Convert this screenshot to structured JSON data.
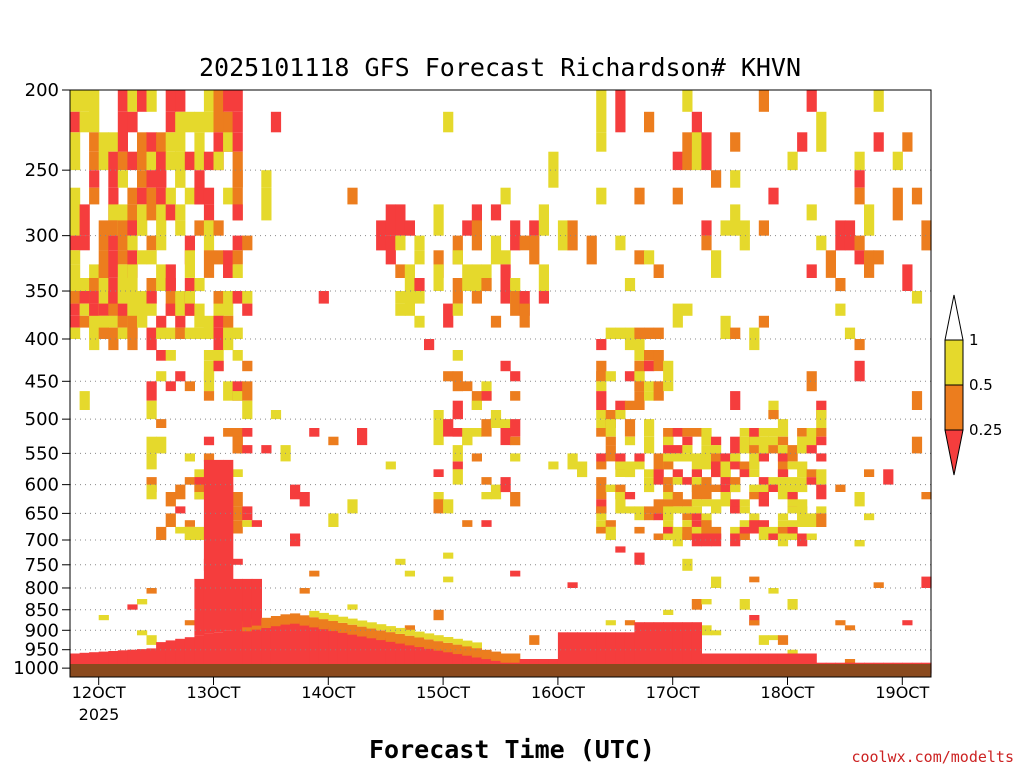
{
  "chart_data": {
    "type": "heatmap",
    "title": "2025101118 GFS Forecast Richardson# KHVN",
    "xlabel": "Forecast Time (UTC)",
    "ylabel": "",
    "credit": "coolwx.com/modelts",
    "x_ticks": [
      "12OCT",
      "13OCT",
      "14OCT",
      "15OCT",
      "16OCT",
      "17OCT",
      "18OCT",
      "19OCT"
    ],
    "x_year": "2025",
    "xlim_days": [
      11.75,
      19.25
    ],
    "y_ticks": [
      "200",
      "250",
      "300",
      "350",
      "400",
      "450",
      "500",
      "550",
      "600",
      "650",
      "700",
      "750",
      "800",
      "850",
      "900",
      "950",
      "1000"
    ],
    "ylim_hpa": [
      200,
      1025
    ],
    "grid": "dotted horizontal at pressure levels",
    "legend": {
      "placement": "right",
      "labels": [
        "1",
        "0.5",
        "0.25"
      ],
      "colors": [
        "#ffffff",
        "#e5d92c",
        "#ec7d1e",
        "#f53d3d"
      ]
    },
    "bins": [
      {
        "range": "0.5-1",
        "color": "#e5d92c"
      },
      {
        "range": "0.25-0.5",
        "color": "#ec7d1e"
      },
      {
        "range": "<0.25",
        "color": "#f53d3d"
      }
    ],
    "ground_color": "#8a4a1e",
    "regions": [
      {
        "t0": 11.75,
        "t1": 12.4,
        "p0": 200,
        "p1": 395,
        "bin": "mixed-upper"
      },
      {
        "t0": 12.4,
        "t1": 13.2,
        "p0": 200,
        "p1": 380,
        "bin": "mixed-upper"
      },
      {
        "t0": 11.75,
        "t1": 12.3,
        "p0": 335,
        "p1": 375,
        "bin": "<0.25"
      },
      {
        "t0": 14.5,
        "t1": 15.9,
        "p0": 270,
        "p1": 360,
        "bin": "mixed-upper"
      },
      {
        "t0": 16.3,
        "t1": 16.9,
        "p0": 380,
        "p1": 700,
        "bin": "mixed-mid"
      },
      {
        "t0": 16.9,
        "t1": 18.3,
        "p0": 500,
        "p1": 700,
        "bin": "mixed-mid"
      },
      {
        "t0": 11.75,
        "t1": 19.25,
        "p0": 890,
        "p1": 1015,
        "bin": "mixed-low"
      }
    ]
  }
}
